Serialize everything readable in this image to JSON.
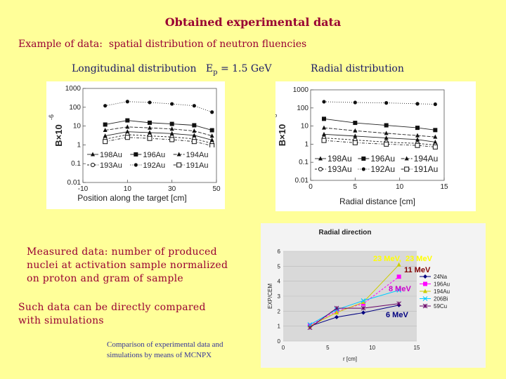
{
  "slide": {
    "title": "Obtained experimental data",
    "example_label": "Example of data:",
    "example_text": "spatial distribution of neutron fluencies",
    "long_header": "Longitudinal distribution",
    "energy_label": "E",
    "energy_sub": "p",
    "energy_value": " = 1.5 GeV",
    "radial_header": "Radial distribution",
    "measured_label": "Measured data:",
    "measured_text": "number of produced nuclei at activation sample normalized on proton and gram of sample",
    "compare_text": "Such data can be directly compared with simulations",
    "mcnpx_text": "Comparison of experimental data and simulations by means of MCNPX"
  },
  "colors": {
    "background": "#ffff99",
    "title": "#990033",
    "header": "#1a1a66",
    "note": "#990033",
    "small_note": "#333399",
    "na_line": "#000080",
    "au_line": "#ff00ff",
    "bi_line": "#00ccff",
    "cu_marker": "#660066",
    "label_yellow": "#ffff00",
    "label_maroon": "#800000",
    "label_purple": "#cc00cc",
    "label_navy": "#000080"
  },
  "chart_data": [
    {
      "type": "line",
      "name": "longitudinal",
      "ylabel": "B×10",
      "ylabel_exp": "-6",
      "xlabel": "Position along the target [cm]",
      "log_y": true,
      "ylim": [
        0.01,
        1000
      ],
      "xlim": [
        -10,
        50
      ],
      "x_ticks": [
        "-10",
        "10",
        "30",
        "50"
      ],
      "y_ticks": [
        "1000",
        "100",
        "10",
        "1",
        "0.1",
        "0.01"
      ],
      "x": [
        0,
        10,
        20,
        30,
        40,
        48
      ],
      "series": [
        {
          "name": "198Au",
          "marker": "triangle",
          "values": [
            3,
            5,
            4.5,
            4,
            3.2,
            1.8
          ]
        },
        {
          "name": "196Au",
          "marker": "square",
          "values": [
            12,
            20,
            15,
            13,
            11,
            6
          ]
        },
        {
          "name": "194Au",
          "marker": "triangle",
          "values": [
            6,
            9,
            8,
            7,
            5.5,
            3
          ]
        },
        {
          "name": "193Au",
          "marker": "open-circle",
          "values": [
            2,
            3.5,
            3,
            2.6,
            2.1,
            1.2
          ]
        },
        {
          "name": "192Au",
          "marker": "circle",
          "values": [
            120,
            200,
            180,
            150,
            120,
            55
          ]
        },
        {
          "name": "191Au",
          "marker": "open-square",
          "values": [
            1.5,
            2.5,
            2.2,
            1.9,
            1.5,
            0.9
          ]
        }
      ],
      "legend": {
        "position": "bottom",
        "rows": [
          [
            "198Au",
            "196Au",
            "194Au"
          ],
          [
            "193Au",
            "192Au",
            "191Au"
          ]
        ]
      }
    },
    {
      "type": "line",
      "name": "radial",
      "ylabel": "B×10",
      "ylabel_exp": "-6",
      "xlabel": "Radial distance [cm]",
      "log_y": true,
      "ylim": [
        0.01,
        1000
      ],
      "xlim": [
        0,
        15
      ],
      "x_ticks": [
        "0",
        "5",
        "10",
        "15"
      ],
      "y_ticks": [
        "1000",
        "100",
        "10",
        "1",
        "0.1",
        "0.01"
      ],
      "x": [
        1.5,
        5,
        8.5,
        12,
        14
      ],
      "series": [
        {
          "name": "198Au",
          "marker": "triangle",
          "values": [
            3.5,
            2.8,
            2.2,
            1.8,
            1.3
          ]
        },
        {
          "name": "196Au",
          "marker": "square",
          "values": [
            25,
            15,
            11,
            8,
            6
          ]
        },
        {
          "name": "194Au",
          "marker": "triangle",
          "values": [
            8,
            5.5,
            4,
            3,
            2.5
          ]
        },
        {
          "name": "193Au",
          "marker": "open-circle",
          "values": [
            2.2,
            1.7,
            1.3,
            1.1,
            0.9
          ]
        },
        {
          "name": "192Au",
          "marker": "circle",
          "values": [
            220,
            200,
            190,
            170,
            160
          ]
        },
        {
          "name": "191Au",
          "marker": "open-square",
          "values": [
            1.6,
            1.2,
            1,
            0.85,
            0.7
          ]
        }
      ],
      "legend": {
        "position": "bottom",
        "rows": [
          [
            "198Au",
            "196Au",
            "194Au"
          ],
          [
            "193Au",
            "192Au",
            "191Au"
          ]
        ]
      }
    },
    {
      "type": "line",
      "name": "radial-direction",
      "title": "Radial direction",
      "xlabel": "r [cm]",
      "ylabel": "EXP/CEM",
      "xlim": [
        0,
        15
      ],
      "ylim": [
        0,
        6
      ],
      "x_ticks": [
        "0",
        "5",
        "10",
        "15"
      ],
      "y_ticks": [
        "0",
        "1",
        "2",
        "3",
        "4",
        "5",
        "6"
      ],
      "grid": "horizontal",
      "series": [
        {
          "name": "24Na",
          "marker": "diamond",
          "x": [
            3,
            6,
            9,
            13
          ],
          "values": [
            1.0,
            1.6,
            1.9,
            2.4
          ]
        },
        {
          "name": "196Au",
          "marker": "square",
          "x": [
            3,
            6,
            9,
            13
          ],
          "values": [
            1.05,
            2.0,
            2.5,
            4.3
          ]
        },
        {
          "name": "194Au",
          "marker": "triangle",
          "x": [
            3,
            6,
            9,
            13
          ],
          "values": [
            1.0,
            1.9,
            2.6,
            5.1
          ]
        },
        {
          "name": "206Bi",
          "marker": "x",
          "x": [
            3,
            6,
            9,
            13
          ],
          "values": [
            1.1,
            2.1,
            2.7,
            3.4
          ]
        },
        {
          "name": "59Cu",
          "marker": "star",
          "x": [
            3,
            6,
            9,
            13
          ],
          "values": [
            0.9,
            2.2,
            2.2,
            2.5
          ]
        }
      ],
      "annotations": [
        {
          "text": "23 MeV,",
          "color": "#ffff00"
        },
        {
          "text": "23 MeV",
          "color": "#ffff00"
        },
        {
          "text": "11 MeV",
          "color": "#800000"
        },
        {
          "text": "8 MeV",
          "color": "#cc00cc"
        },
        {
          "text": "6 MeV",
          "color": "#000080"
        }
      ],
      "legend": {
        "position": "right"
      }
    }
  ]
}
